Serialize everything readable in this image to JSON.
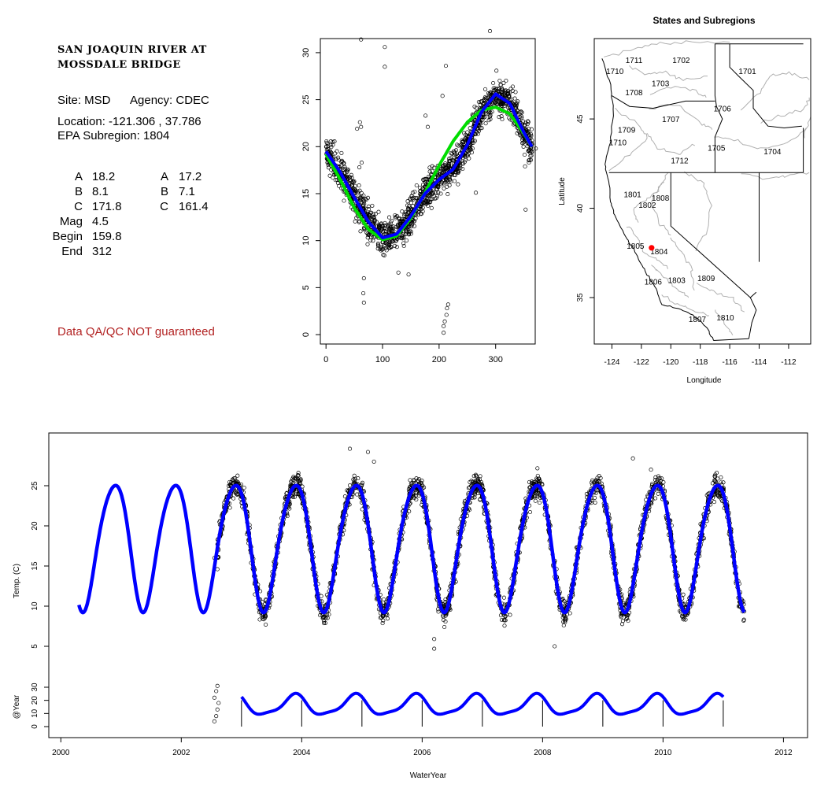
{
  "info": {
    "title_line1": "SAN JOAQUIN RIVER AT",
    "title_line2": "MOSSDALE BRIDGE",
    "site": "Site: MSD",
    "agency": "Agency: CDEC",
    "location": "Location: -121.306 , 37.786",
    "epa_subregion": "EPA Subregion: 1804",
    "params_left": [
      {
        "label": "A",
        "value": "18.2"
      },
      {
        "label": "B",
        "value": "8.1"
      },
      {
        "label": "C",
        "value": "171.8"
      },
      {
        "label": "Mag",
        "value": "4.5"
      },
      {
        "label": "Begin",
        "value": "159.8"
      },
      {
        "label": "End",
        "value": "312"
      }
    ],
    "params_right": [
      {
        "label": "A",
        "value": "17.2"
      },
      {
        "label": "B",
        "value": "7.1"
      },
      {
        "label": "C",
        "value": "161.4"
      }
    ],
    "disclaimer": "Data QA/QC NOT guaranteed"
  },
  "colors": {
    "fit_blue": "#0000ff",
    "fit_green": "#00dd00",
    "site_marker": "#ff0000",
    "disclaimer": "#b22222",
    "boundary_gray": "#b0b0b0"
  },
  "chart_data": [
    {
      "type": "scatter",
      "title": "",
      "xlabel": "",
      "ylabel": "",
      "xlim": [
        -10,
        370
      ],
      "ylim": [
        -1,
        31.5
      ],
      "xticks": [
        0,
        100,
        200,
        300
      ],
      "yticks": [
        0,
        5,
        10,
        15,
        20,
        25,
        30
      ],
      "series": [
        {
          "style": "points",
          "values": "daily temperature observations vs day of water year",
          "approx_outliers": [
            [
              62,
              31.4
            ],
            [
              290,
              32.3
            ],
            [
              104,
              30.6
            ],
            [
              104,
              28.5
            ],
            [
              212,
              28.6
            ],
            [
              206,
              25.4
            ],
            [
              176,
              23.3
            ],
            [
              180,
              22.1
            ],
            [
              60,
              22.6
            ],
            [
              62,
              22.1
            ],
            [
              55,
              21.9
            ],
            [
              63,
              18.3
            ],
            [
              59,
              17.8
            ],
            [
              67,
              6.0
            ],
            [
              66,
              4.4
            ],
            [
              67,
              3.4
            ],
            [
              208,
              0.2
            ],
            [
              208,
              0.9
            ],
            [
              210,
              1.4
            ],
            [
              213,
              2.1
            ],
            [
              214,
              2.8
            ],
            [
              216,
              3.2
            ],
            [
              353,
              13.3
            ],
            [
              371,
              19.8
            ],
            [
              128,
              6.6
            ],
            [
              146,
              6.4
            ],
            [
              265,
              15.1
            ],
            [
              352,
              17.9
            ]
          ]
        },
        {
          "style": "line",
          "color": "blue",
          "fit": "harmonic A/B/C fit",
          "x": [
            0,
            25,
            50,
            75,
            100,
            125,
            150,
            175,
            200,
            225,
            250,
            275,
            300,
            325,
            350,
            365
          ],
          "y": [
            19.5,
            17.3,
            14.6,
            12.0,
            10.3,
            10.7,
            12.6,
            15.0,
            16.5,
            17.6,
            20.2,
            23.7,
            25.6,
            24.6,
            21.5,
            19.9
          ]
        },
        {
          "style": "line",
          "color": "green",
          "fit": "harmonic A/B/C fit",
          "x": [
            0,
            25,
            50,
            75,
            100,
            125,
            150,
            175,
            200,
            225,
            250,
            275,
            300,
            325,
            350,
            365
          ],
          "y": [
            19.2,
            16.5,
            13.5,
            11.2,
            10.1,
            10.5,
            12.4,
            15.1,
            18.0,
            20.6,
            22.6,
            23.9,
            24.2,
            23.5,
            21.4,
            19.9
          ]
        }
      ]
    },
    {
      "type": "map",
      "title": "States and Subregions",
      "xlabel": "Longitude",
      "ylabel": "Latitude",
      "xlim": [
        -125.2,
        -110.5
      ],
      "ylim": [
        32.4,
        49.5
      ],
      "xticks": [
        -124,
        -122,
        -120,
        -118,
        -116,
        -114,
        -112
      ],
      "yticks": [
        35,
        40,
        45
      ],
      "site_point": {
        "lon": -121.306,
        "lat": 37.786
      },
      "region_labels": [
        {
          "label": "1702",
          "lon": -119.3,
          "lat": 48.3
        },
        {
          "label": "1701",
          "lon": -114.8,
          "lat": 47.7
        },
        {
          "label": "1711",
          "lon": -122.5,
          "lat": 48.3
        },
        {
          "label": "1710",
          "lon": -123.8,
          "lat": 47.7
        },
        {
          "label": "1703",
          "lon": -120.7,
          "lat": 47.0
        },
        {
          "label": "1708",
          "lon": -122.5,
          "lat": 46.5
        },
        {
          "label": "1706",
          "lon": -116.5,
          "lat": 45.6
        },
        {
          "label": "1707",
          "lon": -120.0,
          "lat": 45.0
        },
        {
          "label": "1709",
          "lon": -123.0,
          "lat": 44.4
        },
        {
          "label": "1710",
          "lon": -123.6,
          "lat": 43.7
        },
        {
          "label": "1705",
          "lon": -116.9,
          "lat": 43.4
        },
        {
          "label": "1704",
          "lon": -113.1,
          "lat": 43.2
        },
        {
          "label": "1712",
          "lon": -119.4,
          "lat": 42.7
        },
        {
          "label": "1801",
          "lon": -122.6,
          "lat": 40.8
        },
        {
          "label": "1808",
          "lon": -120.7,
          "lat": 40.6
        },
        {
          "label": "1802",
          "lon": -121.6,
          "lat": 40.2
        },
        {
          "label": "1805",
          "lon": -122.4,
          "lat": 37.9
        },
        {
          "label": "1804",
          "lon": -120.8,
          "lat": 37.6
        },
        {
          "label": "1809",
          "lon": -117.6,
          "lat": 36.1
        },
        {
          "label": "1806",
          "lon": -121.2,
          "lat": 35.9
        },
        {
          "label": "1803",
          "lon": -119.6,
          "lat": 36.0
        },
        {
          "label": "1810",
          "lon": -116.3,
          "lat": 33.9
        },
        {
          "label": "1807",
          "lon": -118.2,
          "lat": 33.8
        }
      ]
    },
    {
      "type": "line",
      "title": "",
      "xlabel": "WaterYear",
      "ylabel_upper": "Temp. (C)",
      "ylabel_lower": "@Year",
      "xlim": [
        1999.8,
        2012.4
      ],
      "xticks": [
        2000,
        2002,
        2004,
        2006,
        2008,
        2010,
        2012
      ],
      "upper_yticks": [
        5,
        10,
        15,
        20,
        25
      ],
      "lower_yticks": [
        0,
        10,
        20,
        30
      ],
      "lower_ytick_labels": [
        "0",
        "10",
        "20",
        "30"
      ],
      "fit_curve": {
        "color": "blue",
        "start": 2000.3,
        "end": 2011.35,
        "amplitude_note": "annual cycle approx 10 to 25.7 C, peaks near mid-November each year"
      },
      "observations": {
        "start": 2002.6,
        "end": 2011.35,
        "style": "points"
      },
      "annual_curves_years": [
        2003,
        2004,
        2005,
        2006,
        2007,
        2008,
        2009,
        2010,
        2011
      ],
      "approx_outliers": [
        [
          2004.8,
          29.6
        ],
        [
          2005.1,
          29.2
        ],
        [
          2005.2,
          28.0
        ],
        [
          2002.55,
          16.0
        ],
        [
          2002.6,
          14.6
        ],
        [
          2006.2,
          5.9
        ],
        [
          2006.2,
          4.7
        ],
        [
          2008.2,
          5.0
        ],
        [
          2009.5,
          28.4
        ],
        [
          2009.8,
          27.0
        ]
      ],
      "lower_left_points": [
        [
          2002.55,
          4.0
        ],
        [
          2002.58,
          8.0
        ],
        [
          2002.6,
          13.0
        ],
        [
          2002.62,
          18.0
        ],
        [
          2002.55,
          22.0
        ],
        [
          2002.58,
          27.0
        ],
        [
          2002.6,
          31.0
        ]
      ]
    }
  ]
}
